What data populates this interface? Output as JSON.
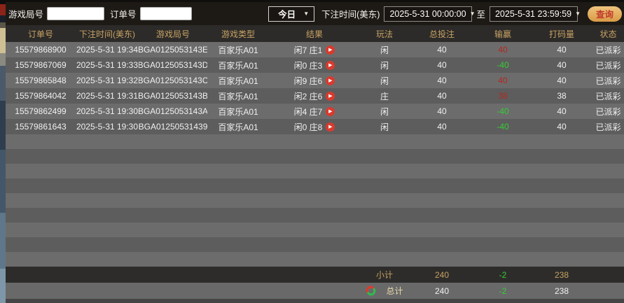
{
  "toolbar": {
    "game_round_label": "游戏局号",
    "game_round_value": "",
    "order_no_label": "订单号",
    "order_no_value": "",
    "period_selected": "今日",
    "bet_time_label": "下注时间(美东)",
    "start_time": "2025-5-31 00:00:00",
    "range_to_label": "至",
    "end_time": "2025-5-31 23:59:59",
    "query_button_label": "查询"
  },
  "table": {
    "headers": [
      "订单号",
      "下注时间(美东)",
      "游戏局号",
      "游戏类型",
      "结果",
      "玩法",
      "总投注",
      "输赢",
      "打码量",
      "状态"
    ],
    "rows": [
      {
        "order_no": "15579868900",
        "bet_time": "2025-5-31 19:34",
        "game_round": "BGA0125053143E",
        "game_type": "百家乐A01",
        "result": "闲7 庄1",
        "play": "闲",
        "total_bet": "40",
        "win_loss": "40",
        "turnover": "40",
        "status": "已派彩"
      },
      {
        "order_no": "15579867069",
        "bet_time": "2025-5-31 19:33",
        "game_round": "BGA0125053143D",
        "game_type": "百家乐A01",
        "result": "闲0 庄3",
        "play": "闲",
        "total_bet": "40",
        "win_loss": "-40",
        "turnover": "40",
        "status": "已派彩"
      },
      {
        "order_no": "15579865848",
        "bet_time": "2025-5-31 19:32",
        "game_round": "BGA0125053143C",
        "game_type": "百家乐A01",
        "result": "闲9 庄6",
        "play": "闲",
        "total_bet": "40",
        "win_loss": "40",
        "turnover": "40",
        "status": "已派彩"
      },
      {
        "order_no": "15579864042",
        "bet_time": "2025-5-31 19:31",
        "game_round": "BGA0125053143B",
        "game_type": "百家乐A01",
        "result": "闲2 庄6",
        "play": "庄",
        "total_bet": "40",
        "win_loss": "38",
        "turnover": "38",
        "status": "已派彩"
      },
      {
        "order_no": "15579862499",
        "bet_time": "2025-5-31 19:30",
        "game_round": "BGA0125053143A",
        "game_type": "百家乐A01",
        "result": "闲4 庄7",
        "play": "闲",
        "total_bet": "40",
        "win_loss": "-40",
        "turnover": "40",
        "status": "已派彩"
      },
      {
        "order_no": "15579861643",
        "bet_time": "2025-5-31 19:30",
        "game_round": "BGA01250531439",
        "game_type": "百家乐A01",
        "result": "闲0 庄8",
        "play": "闲",
        "total_bet": "40",
        "win_loss": "-40",
        "turnover": "40",
        "status": "已派彩"
      }
    ],
    "empty_row_count": 9,
    "subtotal": {
      "label": "小计",
      "total_bet": "240",
      "win_loss": "-2",
      "turnover": "238"
    },
    "total": {
      "label": "总计",
      "total_bet": "240",
      "win_loss": "-2",
      "turnover": "238"
    }
  },
  "icons": {
    "dropdown_arrow": "▼",
    "play_glyph": "▶",
    "play_icon_meaning": "replay-result-video",
    "exchange_icon_meaning": "refresh-totals"
  },
  "colors": {
    "header_gold": "#c8a264",
    "win_red": "#b3281e",
    "loss_green": "#36cd36",
    "query_button_gold": "#d89a45",
    "query_button_text": "#c0392b",
    "row_light": "#6c6c6c",
    "row_dark": "#5d5d5d",
    "toolbar_bg": "#1d1a16"
  }
}
